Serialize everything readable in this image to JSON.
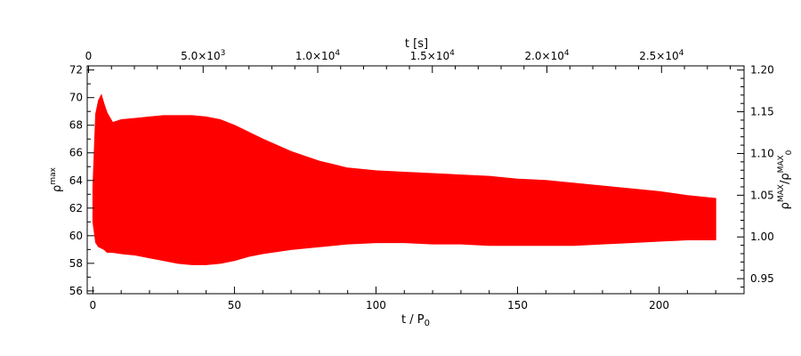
{
  "chart_data": {
    "type": "area",
    "xlabel": "t / P",
    "xlabel_subscript": "0",
    "ylabel": "ρ",
    "ylabel_superscript": "max",
    "top_xlabel": "t [s]",
    "right_ylabel_main": "ρ",
    "right_ylabel_sup1": "MAX",
    "right_ylabel_slash": "/ρ",
    "right_ylabel_sup2": "MAX",
    "right_ylabel_sub2": "0",
    "xlim": [
      -2,
      230
    ],
    "ylim": [
      55.8,
      72.3
    ],
    "top_xlim": [
      -58,
      28600
    ],
    "right_ylim": [
      0.932,
      1.205
    ],
    "x_ticks": [
      0,
      50,
      100,
      150,
      200
    ],
    "x_tick_labels": [
      "0",
      "50",
      "100",
      "150",
      "200"
    ],
    "y_ticks": [
      56,
      58,
      60,
      62,
      64,
      66,
      68,
      70,
      72
    ],
    "y_tick_labels": [
      "56",
      "58",
      "60",
      "62",
      "64",
      "66",
      "68",
      "70",
      "72"
    ],
    "top_ticks": [
      0,
      5000,
      10000,
      15000,
      20000,
      25000
    ],
    "top_tick_labels": [
      "0",
      "5.0×10",
      "1.0×10",
      "1.5×10",
      "2.0×10",
      "2.5×10"
    ],
    "top_tick_exps": [
      "",
      "3",
      "4",
      "4",
      "4",
      "4"
    ],
    "right_ticks": [
      0.95,
      1.0,
      1.05,
      1.1,
      1.15,
      1.2
    ],
    "right_tick_labels": [
      "0.95",
      "1.00",
      "1.05",
      "1.10",
      "1.15",
      "1.20"
    ],
    "series": [
      {
        "color": "#ff0000",
        "envelope_x": [
          0,
          1,
          2,
          3,
          4,
          5,
          7,
          10,
          15,
          20,
          25,
          30,
          35,
          40,
          45,
          50,
          55,
          60,
          70,
          80,
          90,
          100,
          110,
          120,
          130,
          140,
          150,
          160,
          170,
          180,
          190,
          200,
          210,
          215,
          220
        ],
        "upper": [
          63.5,
          68.8,
          69.8,
          70.2,
          69.5,
          68.9,
          68.2,
          68.4,
          68.5,
          68.6,
          68.7,
          68.7,
          68.7,
          68.6,
          68.4,
          68.0,
          67.5,
          67.0,
          66.1,
          65.4,
          64.9,
          64.7,
          64.6,
          64.5,
          64.4,
          64.3,
          64.1,
          64.0,
          63.8,
          63.6,
          63.4,
          63.2,
          62.9,
          62.8,
          62.7
        ],
        "lower": [
          61.0,
          59.5,
          59.2,
          59.1,
          59.0,
          58.8,
          58.8,
          58.7,
          58.6,
          58.4,
          58.2,
          58.0,
          57.9,
          57.9,
          58.0,
          58.2,
          58.5,
          58.7,
          59.0,
          59.2,
          59.4,
          59.5,
          59.5,
          59.4,
          59.4,
          59.3,
          59.3,
          59.3,
          59.3,
          59.4,
          59.5,
          59.6,
          59.7,
          59.7,
          59.7
        ]
      }
    ]
  }
}
